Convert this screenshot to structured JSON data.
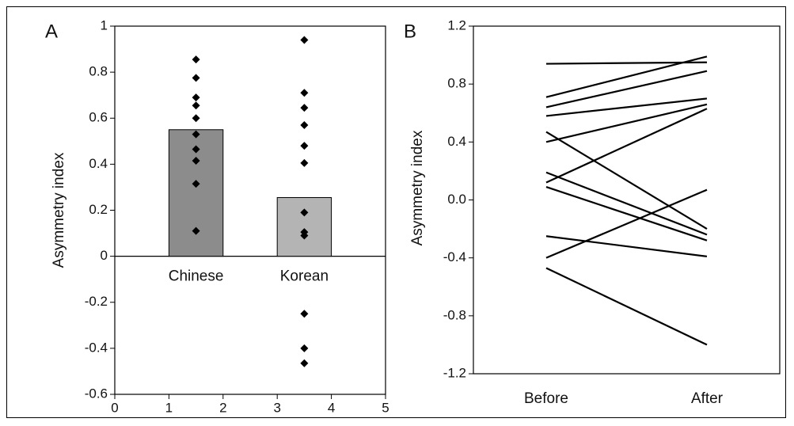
{
  "chart_data": [
    {
      "type": "bar",
      "panel_label": "A",
      "ylabel": "Asymmetry index",
      "categories": [
        "Chinese",
        "Korean"
      ],
      "x": [
        1.5,
        3.5
      ],
      "bar_width": 1,
      "values": [
        0.55,
        0.255
      ],
      "colors": [
        "#8c8c8c",
        "#b4b4b4"
      ],
      "points": [
        [
          0.855,
          0.775,
          0.69,
          0.655,
          0.6,
          0.53,
          0.465,
          0.415,
          0.315,
          0.11
        ],
        [
          0.94,
          0.71,
          0.645,
          0.57,
          0.48,
          0.405,
          0.19,
          0.105,
          0.09,
          -0.25,
          -0.4,
          -0.465
        ]
      ],
      "point_color": "#000000",
      "xlim": [
        0,
        5
      ],
      "xticks": [
        0,
        1,
        2,
        3,
        4,
        5
      ],
      "ylim": [
        -0.6,
        1
      ],
      "yticks": [
        -0.6,
        -0.4,
        -0.2,
        0,
        0.2,
        0.4,
        0.6,
        0.8,
        1
      ]
    },
    {
      "type": "line",
      "panel_label": "B",
      "ylabel": "Asymmetry index",
      "categories": [
        "Before",
        "After"
      ],
      "series": [
        {
          "color": "#000000",
          "values": [
            0.94,
            0.95
          ]
        },
        {
          "color": "#000000",
          "values": [
            0.71,
            0.99
          ]
        },
        {
          "color": "#000000",
          "values": [
            0.64,
            0.89
          ]
        },
        {
          "color": "#000000",
          "values": [
            0.58,
            0.7
          ]
        },
        {
          "color": "#000000",
          "values": [
            0.4,
            0.66
          ]
        },
        {
          "color": "#000000",
          "values": [
            0.12,
            0.63
          ]
        },
        {
          "color": "#000000",
          "values": [
            0.47,
            -0.2
          ]
        },
        {
          "color": "#000000",
          "values": [
            0.19,
            -0.24
          ]
        },
        {
          "color": "#000000",
          "values": [
            0.09,
            -0.28
          ]
        },
        {
          "color": "#000000",
          "values": [
            -0.25,
            -0.39
          ]
        },
        {
          "color": "#000000",
          "values": [
            -0.4,
            0.07
          ]
        },
        {
          "color": "#000000",
          "values": [
            -0.47,
            -1.0
          ]
        }
      ],
      "ylim": [
        -1.2,
        1.2
      ],
      "yticks": [
        -1.2,
        -0.8,
        -0.4,
        {
          "value": 0,
          "label": "0.0"
        },
        0.4,
        0.8,
        1.2
      ]
    }
  ]
}
